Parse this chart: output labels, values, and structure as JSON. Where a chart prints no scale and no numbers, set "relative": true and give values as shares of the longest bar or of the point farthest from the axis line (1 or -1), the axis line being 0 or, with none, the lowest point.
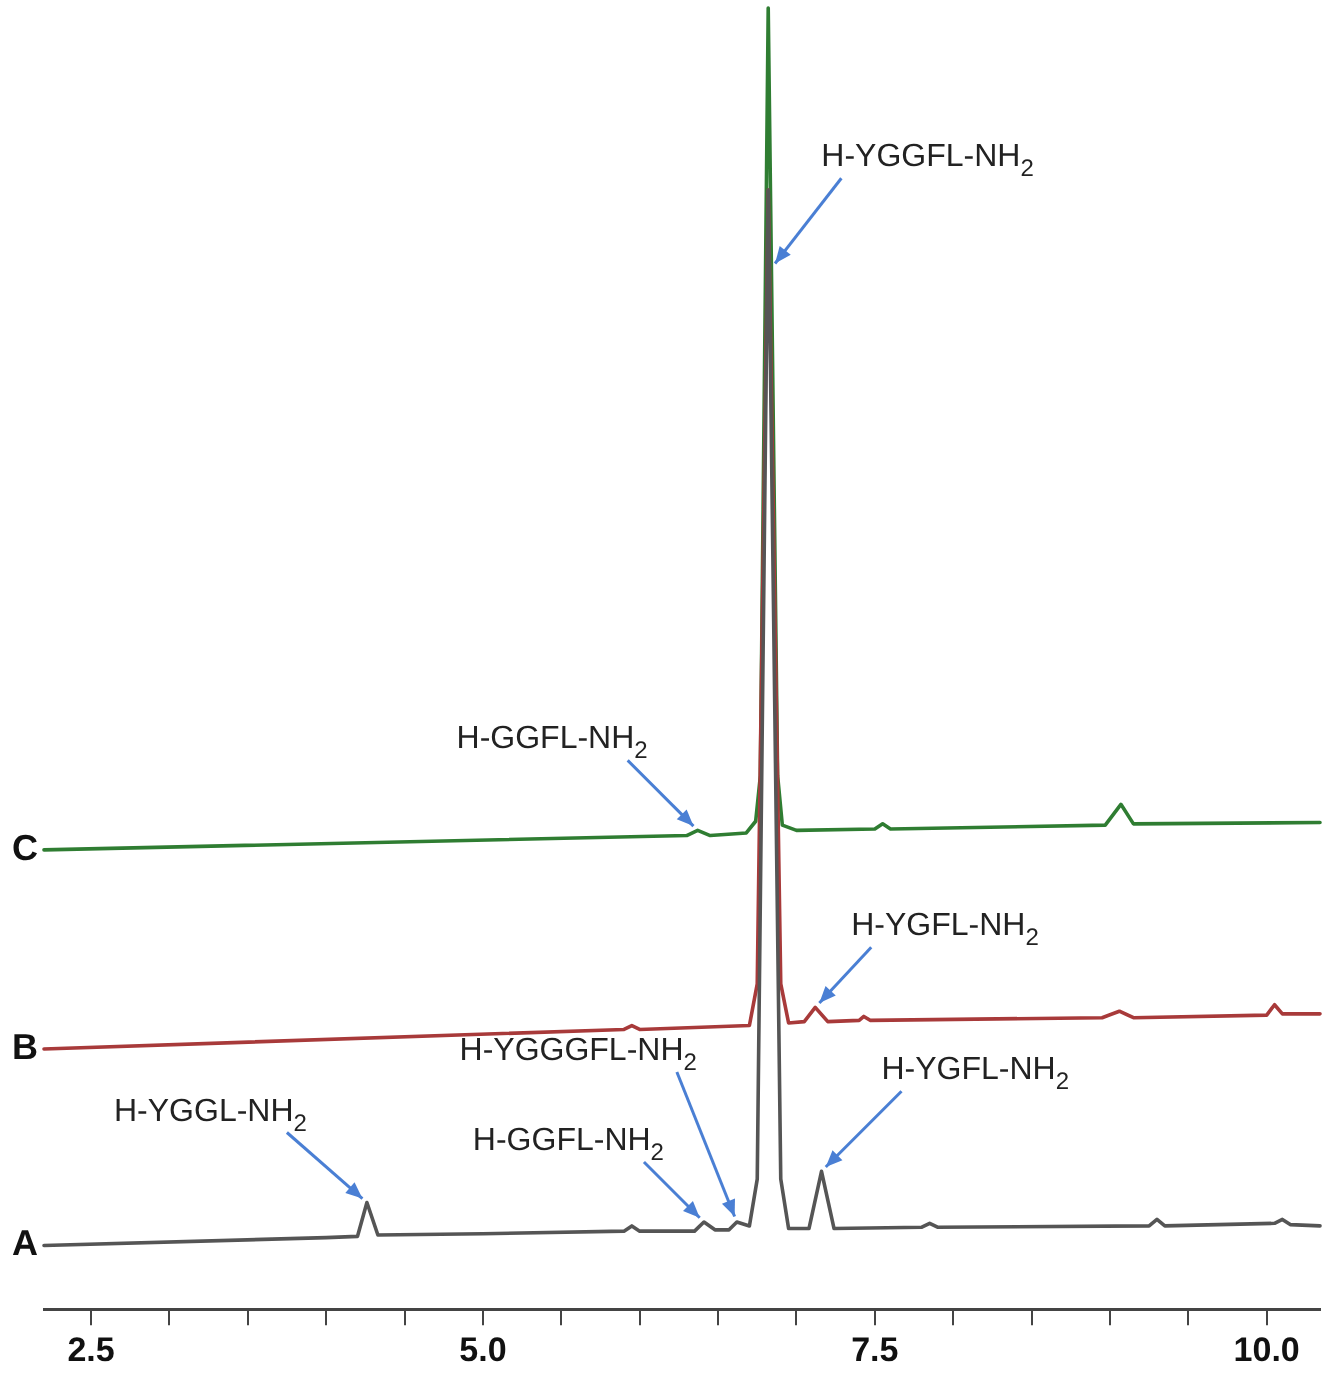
{
  "chart_data": {
    "type": "line",
    "relative": true,
    "marker": "none",
    "line_style": "solid",
    "grid": false,
    "legend": false,
    "tick_labels": "x",
    "xlim": [
      2.2,
      10.34
    ],
    "xticks": [
      {
        "value": 2.5,
        "label": "2.5"
      },
      {
        "value": 3,
        "label": null
      },
      {
        "value": 3.5,
        "label": null
      },
      {
        "value": 4,
        "label": null
      },
      {
        "value": 4.5,
        "label": null
      },
      {
        "value": 5,
        "label": "5.0"
      },
      {
        "value": 5.5,
        "label": null
      },
      {
        "value": 6,
        "label": null
      },
      {
        "value": 6.5,
        "label": null
      },
      {
        "value": 7,
        "label": null
      },
      {
        "value": 7.5,
        "label": "7.5"
      },
      {
        "value": 8,
        "label": null
      },
      {
        "value": 8.5,
        "label": null
      },
      {
        "value": 9,
        "label": null
      },
      {
        "value": 9.5,
        "label": null
      },
      {
        "value": 10,
        "label": "10.0"
      }
    ],
    "series": [
      {
        "name": "A",
        "color": "#555555",
        "x": [
          2.2,
          4.0,
          4.2,
          4.26,
          4.33,
          5.0,
          5.9,
          5.95,
          6.0,
          6.35,
          6.41,
          6.48,
          6.57,
          6.62,
          6.7,
          6.75,
          6.82,
          6.9,
          6.95,
          7.08,
          7.16,
          7.24,
          7.8,
          7.85,
          7.9,
          9.25,
          9.3,
          9.35,
          10.05,
          10.1,
          10.15,
          10.34
        ],
        "values": [
          0.049,
          0.055,
          0.056,
          0.082,
          0.057,
          0.058,
          0.06,
          0.064,
          0.06,
          0.06,
          0.067,
          0.061,
          0.061,
          0.067,
          0.064,
          0.1,
          0.86,
          0.1,
          0.062,
          0.062,
          0.106,
          0.062,
          0.063,
          0.066,
          0.063,
          0.064,
          0.069,
          0.064,
          0.066,
          0.069,
          0.065,
          0.064
        ]
      },
      {
        "name": "B",
        "color": "#a83a3a",
        "x": [
          2.2,
          5.9,
          5.95,
          6.0,
          6.7,
          6.75,
          6.82,
          6.9,
          6.95,
          7.05,
          7.12,
          7.2,
          7.4,
          7.43,
          7.47,
          8.95,
          9.06,
          9.15,
          10.0,
          10.05,
          10.1,
          10.34
        ],
        "values": [
          0.2,
          0.215,
          0.218,
          0.215,
          0.218,
          0.25,
          0.86,
          0.25,
          0.22,
          0.221,
          0.232,
          0.221,
          0.222,
          0.225,
          0.222,
          0.224,
          0.229,
          0.224,
          0.226,
          0.234,
          0.227,
          0.227
        ]
      },
      {
        "name": "C",
        "color": "#2f7d32",
        "x": [
          2.2,
          6.3,
          6.37,
          6.45,
          6.68,
          6.74,
          6.77,
          6.82,
          6.88,
          6.91,
          7.0,
          7.5,
          7.55,
          7.6,
          8.97,
          9.07,
          9.15,
          10.34
        ],
        "values": [
          0.353,
          0.364,
          0.368,
          0.364,
          0.366,
          0.375,
          0.41,
          1.0,
          0.41,
          0.372,
          0.368,
          0.369,
          0.373,
          0.369,
          0.372,
          0.388,
          0.373,
          0.374
        ]
      }
    ],
    "annotations": [
      {
        "text": "H-YGGFL-NH$_{2}$",
        "x": 6.84,
        "y": 0.8
      },
      {
        "text": "H-GGFL-NH$_{2}$",
        "x": 6.37,
        "y": 0.368
      },
      {
        "text": "H-YGFL-NH$_{2}$",
        "x": 7.12,
        "y": 0.232
      },
      {
        "text": "H-YGGL-NH$_{2}$",
        "x": 4.26,
        "y": 0.082
      },
      {
        "text": "H-YGGGFL-NH$_{2}$",
        "x": 6.62,
        "y": 0.067
      },
      {
        "text": "H-GGFL-NH$_{2}$",
        "x": 6.41,
        "y": 0.067
      },
      {
        "text": "H-YGFL-NH$_{2}$",
        "x": 7.16,
        "y": 0.106
      }
    ]
  }
}
